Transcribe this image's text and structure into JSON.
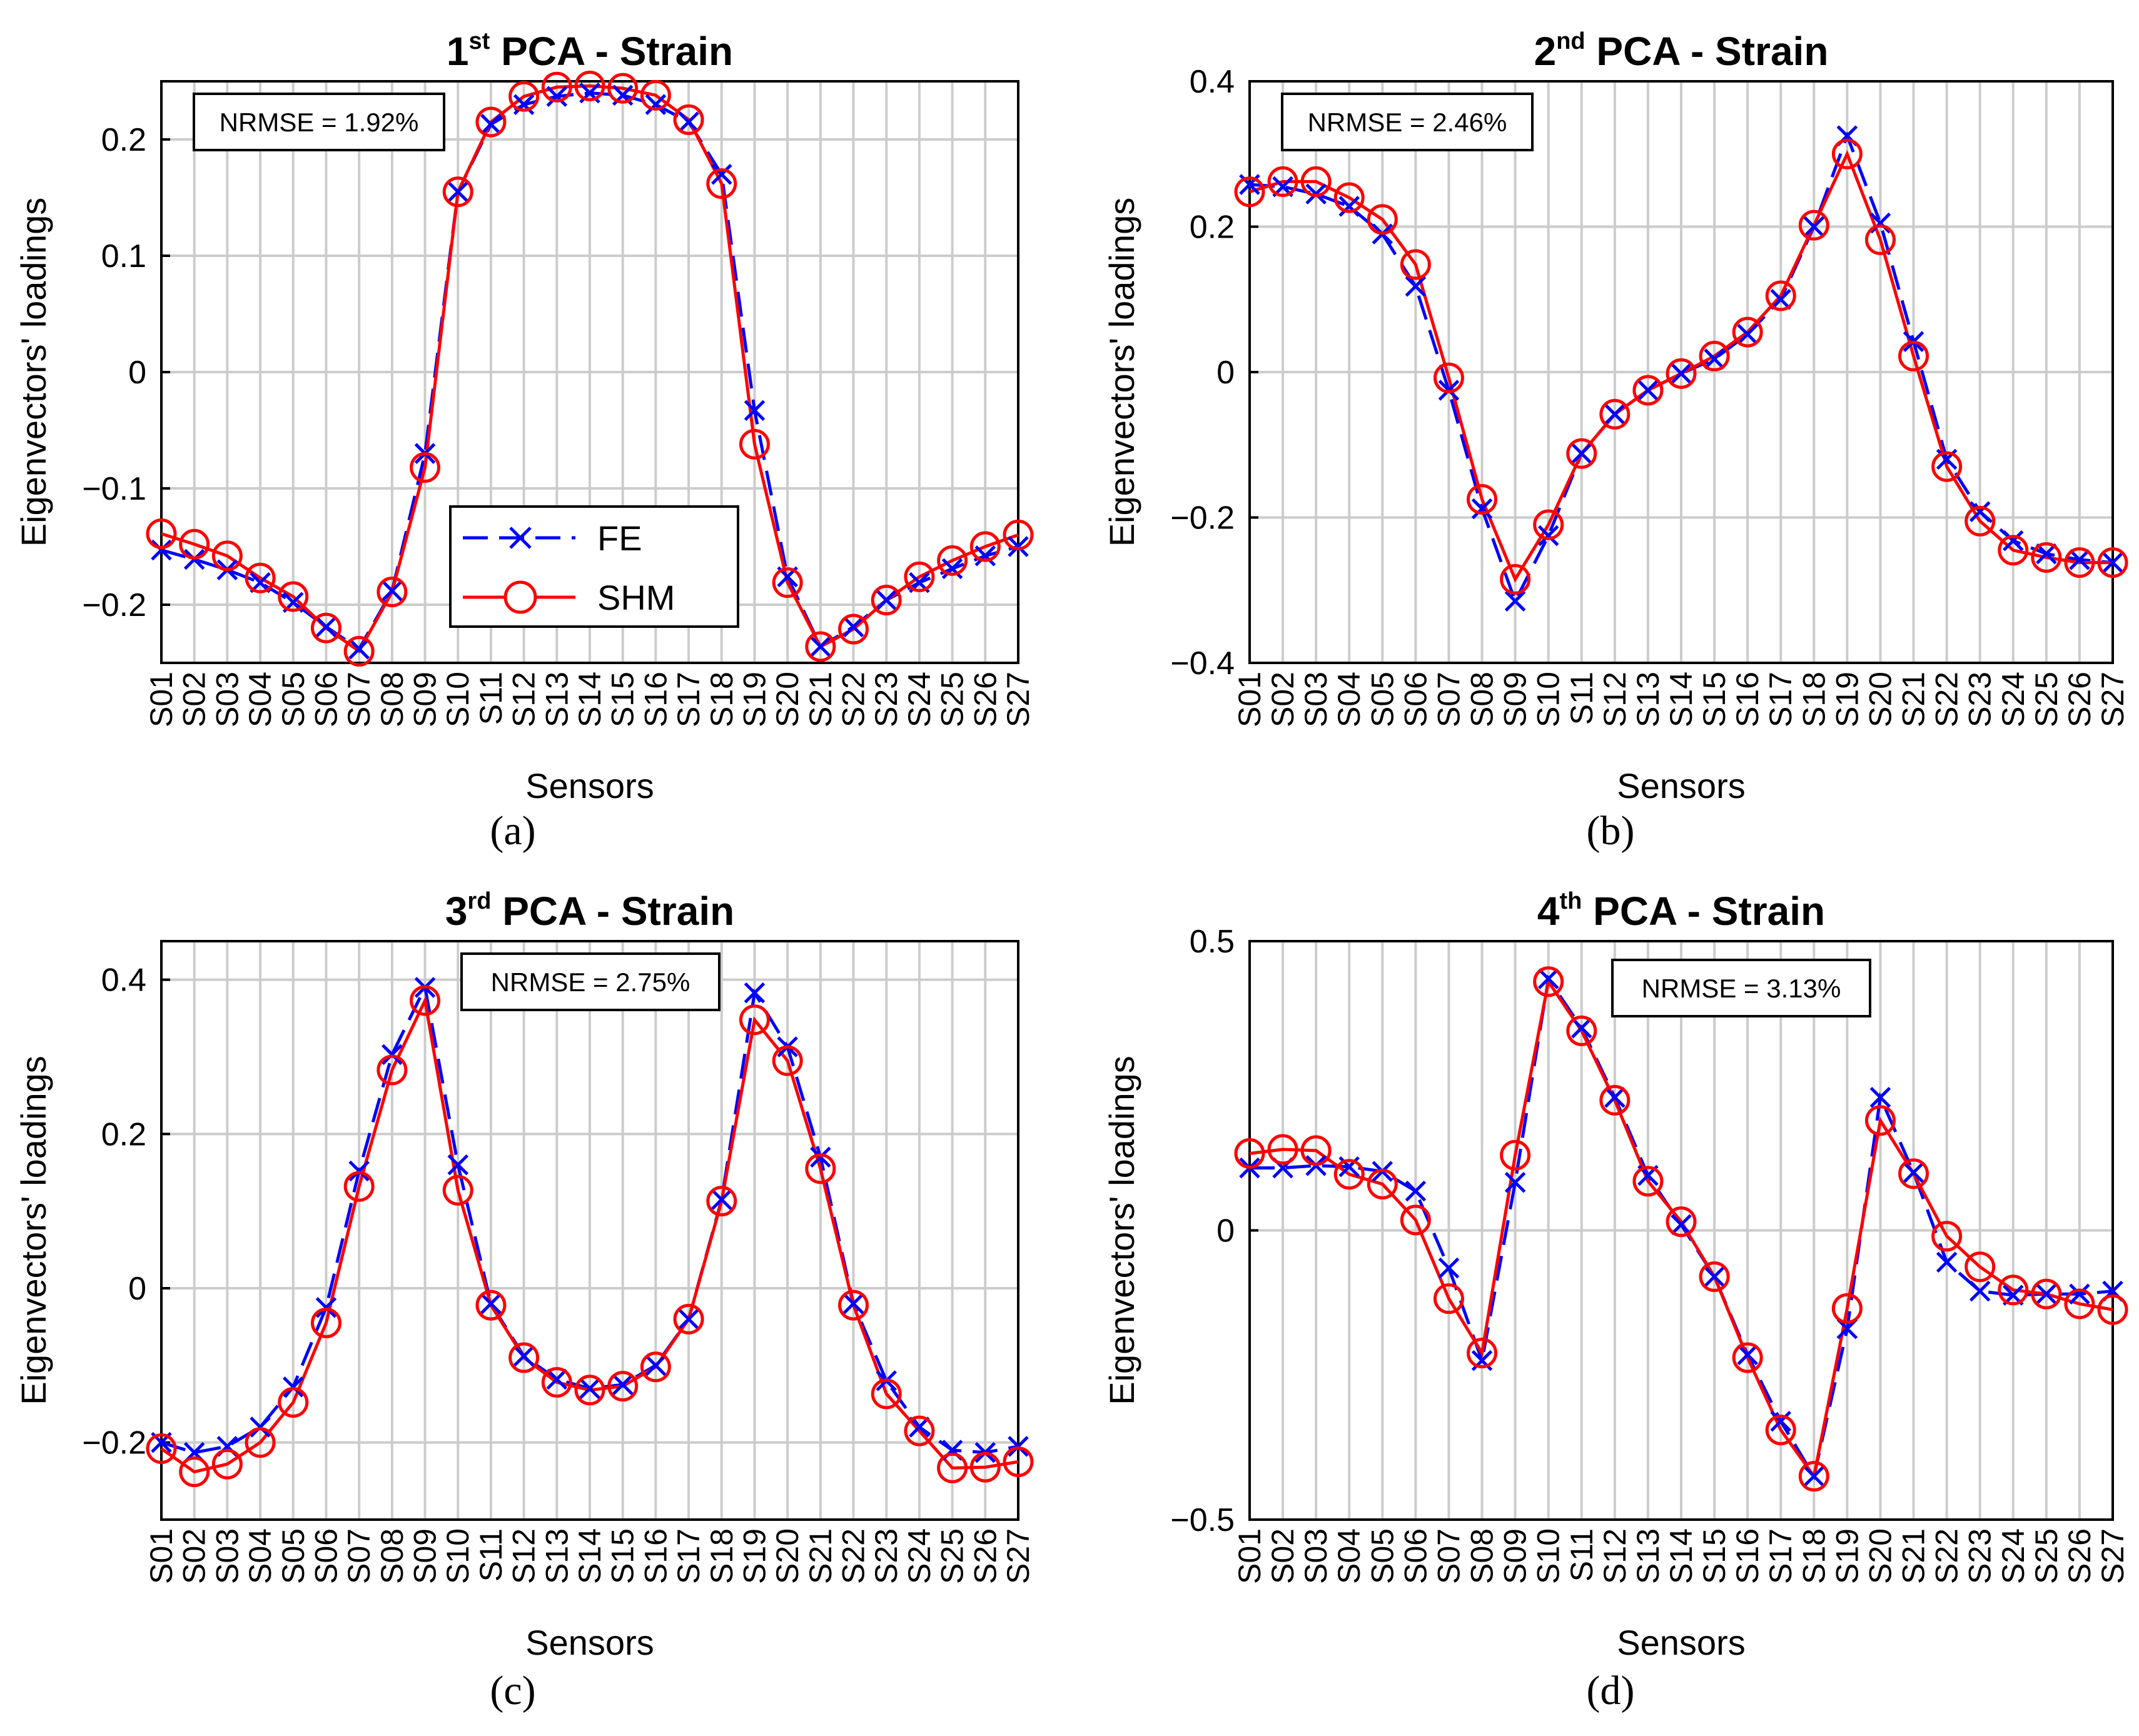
{
  "figure": {
    "categories": [
      "S01",
      "S02",
      "S03",
      "S04",
      "S05",
      "S06",
      "S07",
      "S08",
      "S09",
      "S10",
      "S11",
      "S12",
      "S13",
      "S14",
      "S15",
      "S16",
      "S17",
      "S18",
      "S19",
      "S20",
      "S21",
      "S22",
      "S23",
      "S24",
      "S25",
      "S26",
      "S27"
    ],
    "colors": {
      "fe": "#0000ff",
      "shm": "#ff0000",
      "grid": "#cccccc",
      "axis": "#000000"
    }
  },
  "chart_data": [
    {
      "type": "line",
      "title_prefix": "1",
      "title_sup": "st",
      "title_suffix": " PCA - Strain",
      "caption": "(a)",
      "xlabel": "Sensors",
      "ylabel": "Eigenvectors' loadings",
      "ylim": [
        -0.25,
        0.25
      ],
      "yticks": [
        -0.2,
        -0.1,
        0,
        0.1,
        0.2
      ],
      "ytick_labels": [
        "−0.2",
        "−0.1",
        "0",
        "0.1",
        "0.2"
      ],
      "annotation": "NRMSE = 1.92%",
      "annotation_position": "top-left",
      "legend": {
        "position": "lower-center",
        "entries": [
          "FE",
          "SHM"
        ]
      },
      "series": [
        {
          "name": "FE",
          "values": [
            -0.153,
            -0.161,
            -0.17,
            -0.181,
            -0.198,
            -0.219,
            -0.238,
            -0.188,
            -0.07,
            0.155,
            0.213,
            0.23,
            0.237,
            0.24,
            0.238,
            0.23,
            0.215,
            0.17,
            -0.033,
            -0.176,
            -0.236,
            -0.219,
            -0.196,
            -0.181,
            -0.169,
            -0.158,
            -0.15
          ]
        },
        {
          "name": "SHM",
          "values": [
            -0.139,
            -0.148,
            -0.158,
            -0.177,
            -0.193,
            -0.22,
            -0.24,
            -0.189,
            -0.082,
            0.155,
            0.215,
            0.237,
            0.245,
            0.246,
            0.244,
            0.238,
            0.217,
            0.162,
            -0.062,
            -0.181,
            -0.236,
            -0.221,
            -0.196,
            -0.176,
            -0.162,
            -0.15,
            -0.14
          ]
        }
      ]
    },
    {
      "type": "line",
      "title_prefix": "2",
      "title_sup": "nd",
      "title_suffix": " PCA - Strain",
      "caption": "(b)",
      "xlabel": "Sensors",
      "ylabel": "Eigenvectors' loadings",
      "ylim": [
        -0.4,
        0.4
      ],
      "yticks": [
        -0.4,
        -0.2,
        0,
        0.2,
        0.4
      ],
      "ytick_labels": [
        "−0.4",
        "−0.2",
        "0",
        "0.2",
        "0.4"
      ],
      "annotation": "NRMSE = 2.46%",
      "annotation_position": "top-left",
      "series": [
        {
          "name": "FE",
          "values": [
            0.258,
            0.255,
            0.245,
            0.228,
            0.19,
            0.118,
            -0.025,
            -0.188,
            -0.315,
            -0.225,
            -0.112,
            -0.058,
            -0.025,
            -0.002,
            0.018,
            0.052,
            0.1,
            0.2,
            0.325,
            0.205,
            0.042,
            -0.12,
            -0.192,
            -0.232,
            -0.25,
            -0.258,
            -0.262
          ]
        },
        {
          "name": "SHM",
          "values": [
            0.248,
            0.262,
            0.262,
            0.24,
            0.21,
            0.148,
            -0.008,
            -0.175,
            -0.285,
            -0.21,
            -0.112,
            -0.058,
            -0.025,
            -0.002,
            0.022,
            0.055,
            0.105,
            0.202,
            0.3,
            0.182,
            0.022,
            -0.13,
            -0.205,
            -0.245,
            -0.255,
            -0.262,
            -0.262
          ]
        }
      ]
    },
    {
      "type": "line",
      "title_prefix": "3",
      "title_sup": "rd",
      "title_suffix": " PCA - Strain",
      "caption": "(c)",
      "xlabel": "Sensors",
      "ylabel": "Eigenvectors' loadings",
      "ylim": [
        -0.3,
        0.45
      ],
      "yticks": [
        -0.2,
        0,
        0.2,
        0.4
      ],
      "ytick_labels": [
        "−0.2",
        "0",
        "0.2",
        "0.4"
      ],
      "annotation": "NRMSE = 2.75%",
      "annotation_position": "top-center",
      "series": [
        {
          "name": "FE",
          "values": [
            -0.2,
            -0.213,
            -0.205,
            -0.18,
            -0.128,
            -0.025,
            0.152,
            0.303,
            0.39,
            0.16,
            -0.02,
            -0.088,
            -0.118,
            -0.13,
            -0.125,
            -0.1,
            -0.04,
            0.115,
            0.383,
            0.313,
            0.17,
            -0.02,
            -0.12,
            -0.18,
            -0.21,
            -0.213,
            -0.205
          ]
        },
        {
          "name": "SHM",
          "values": [
            -0.208,
            -0.238,
            -0.228,
            -0.2,
            -0.148,
            -0.045,
            0.132,
            0.283,
            0.373,
            0.127,
            -0.022,
            -0.09,
            -0.122,
            -0.132,
            -0.127,
            -0.102,
            -0.04,
            0.113,
            0.348,
            0.295,
            0.155,
            -0.022,
            -0.137,
            -0.185,
            -0.233,
            -0.232,
            -0.225
          ]
        }
      ]
    },
    {
      "type": "line",
      "title_prefix": "4",
      "title_sup": "th",
      "title_suffix": " PCA - Strain",
      "caption": "(d)",
      "xlabel": "Sensors",
      "ylabel": "Eigenvectors' loadings",
      "ylim": [
        -0.5,
        0.5
      ],
      "yticks": [
        -0.5,
        0,
        0.5
      ],
      "ytick_labels": [
        "−0.5",
        "0",
        "0.5"
      ],
      "annotation": "NRMSE = 3.13%",
      "annotation_position": "top-center",
      "series": [
        {
          "name": "FE",
          "values": [
            0.108,
            0.108,
            0.112,
            0.11,
            0.102,
            0.068,
            -0.065,
            -0.225,
            0.083,
            0.435,
            0.35,
            0.23,
            0.095,
            0.01,
            -0.08,
            -0.215,
            -0.33,
            -0.425,
            -0.17,
            0.23,
            0.1,
            -0.055,
            -0.105,
            -0.112,
            -0.11,
            -0.11,
            -0.105
          ]
        },
        {
          "name": "SHM",
          "values": [
            0.133,
            0.14,
            0.138,
            0.097,
            0.08,
            0.018,
            -0.118,
            -0.212,
            0.13,
            0.43,
            0.345,
            0.225,
            0.085,
            0.015,
            -0.08,
            -0.22,
            -0.345,
            -0.425,
            -0.135,
            0.19,
            0.098,
            -0.01,
            -0.063,
            -0.103,
            -0.11,
            -0.127,
            -0.137
          ]
        }
      ]
    }
  ]
}
